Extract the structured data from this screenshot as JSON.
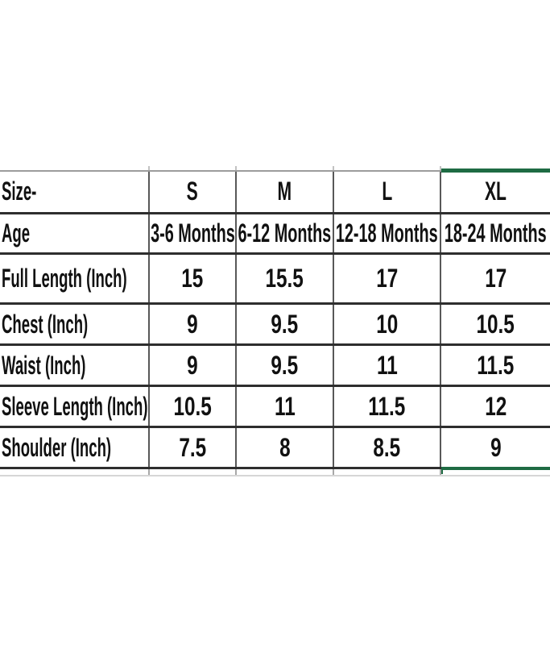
{
  "chart_data": {
    "type": "table",
    "title": "",
    "columns": [
      "Size-",
      "S",
      "M",
      "L",
      "XL"
    ],
    "rows": [
      {
        "label": "Age",
        "values": [
          "3-6 Months",
          "6-12 Months",
          "12-18 Months",
          "18-24 Months"
        ]
      },
      {
        "label": "Full Length (Inch)",
        "values": [
          "15",
          "15.5",
          "17",
          "17"
        ]
      },
      {
        "label": "Chest (Inch)",
        "values": [
          "9",
          "9.5",
          "10",
          "10.5"
        ]
      },
      {
        "label": "Waist (Inch)",
        "values": [
          "9",
          "9.5",
          "11",
          "11.5"
        ]
      },
      {
        "label": "Sleeve Length (Inch)",
        "values": [
          "10.5",
          "11",
          "11.5",
          "12"
        ]
      },
      {
        "label": "Shoulder (Inch)",
        "values": [
          "7.5",
          "8",
          "8.5",
          "9"
        ]
      }
    ],
    "highlighted_column": "XL",
    "layout_hints": {
      "grid": "on",
      "header_row": "Size-",
      "highlight_style": "green selection border on top and bottom of XL column"
    },
    "colors": {
      "selection_green": "#1e6b43",
      "grid_horizontal": "#2e2e2e",
      "grid_vertical": "#585858",
      "table_top_border": "#9c9c9c",
      "text": "#111111",
      "background": "#ffffff"
    }
  }
}
